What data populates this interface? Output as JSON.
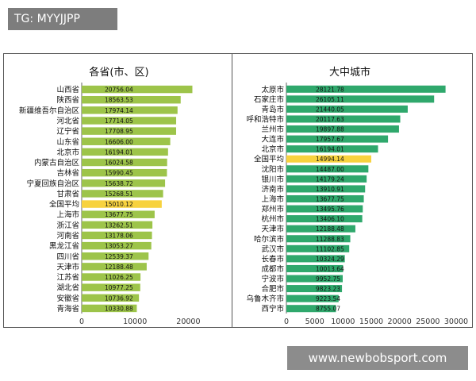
{
  "header_tag": "TG: MYYJJPP",
  "footer_watermark": "www.newbobsport.com",
  "colors": {
    "bar_green_light": "#9dc44a",
    "bar_green_dark": "#2fa86c",
    "bar_highlight": "#f7d23e",
    "axis": "#666666"
  },
  "chart_data": [
    {
      "type": "bar",
      "orientation": "horizontal",
      "title": "各省(市、区)",
      "categories": [
        "山西省",
        "陕西省",
        "新疆维吾尔自治区",
        "河北省",
        "辽宁省",
        "山东省",
        "北京市",
        "内蒙古自治区",
        "吉林省",
        "宁夏回族自治区",
        "甘肃省",
        "全国平均",
        "上海市",
        "浙江省",
        "河南省",
        "黑龙江省",
        "四川省",
        "天津市",
        "江苏省",
        "湖北省",
        "安徽省",
        "青海省"
      ],
      "values": [
        20756.04,
        18563.53,
        17974.14,
        17714.05,
        17708.95,
        16606.0,
        16194.01,
        16024.58,
        15990.45,
        15638.72,
        15268.51,
        15010.12,
        13677.75,
        13262.51,
        13178.06,
        13053.27,
        12539.37,
        12188.48,
        11026.25,
        10977.25,
        10736.92,
        10330.88
      ],
      "value_labels": [
        "20756.04",
        "18563.53",
        "17974.14",
        "17714.05",
        "17708.95",
        "16606.00",
        "16194.01",
        "16024.58",
        "15990.45",
        "15638.72",
        "15268.51",
        "15010.12",
        "13677.75",
        "13262.51",
        "13178.06",
        "13053.27",
        "12539.37",
        "12188.48",
        "11026.25",
        "10977.25",
        "10736.92",
        "10330.88"
      ],
      "highlight_category": "全国平均",
      "xlim": [
        0,
        25000
      ],
      "xticks": [
        0,
        10000,
        20000
      ],
      "xtick_labels": [
        "0",
        "10000",
        "20000"
      ],
      "grid": false,
      "legend": "none"
    },
    {
      "type": "bar",
      "orientation": "horizontal",
      "title": "大中城市",
      "categories": [
        "太原市",
        "石家庄市",
        "青岛市",
        "呼和浩特市",
        "兰州市",
        "大连市",
        "北京市",
        "全国平均",
        "沈阳市",
        "银川市",
        "济南市",
        "上海市",
        "郑州市",
        "杭州市",
        "天津市",
        "哈尔滨市",
        "武汉市",
        "长春市",
        "成都市",
        "宁波市",
        "合肥市",
        "乌鲁木齐市",
        "西宁市"
      ],
      "values": [
        28121.78,
        26105.11,
        21440.05,
        20117.63,
        19897.88,
        17957.67,
        16194.01,
        14994.14,
        14487.0,
        14179.24,
        13910.91,
        13677.75,
        13495.76,
        13406.1,
        12188.48,
        11288.83,
        11102.85,
        10324.29,
        10013.64,
        9952.75,
        9823.23,
        9223.54,
        8755.07
      ],
      "value_labels": [
        "28121.78",
        "26105.11",
        "21440.05",
        "20117.63",
        "19897.88",
        "17957.67",
        "16194.01",
        "14994.14",
        "14487.00",
        "14179.24",
        "13910.91",
        "13677.75",
        "13495.76",
        "13406.10",
        "12188.48",
        "11288.83",
        "11102.85",
        "10324.29",
        "10013.64",
        "9952.75",
        "9823.23",
        "9223.54",
        "8755.07"
      ],
      "highlight_category": "全国平均",
      "xlim": [
        0,
        30000
      ],
      "xticks": [
        0,
        5000,
        10000,
        15000,
        20000,
        25000,
        30000
      ],
      "xtick_labels": [
        "0",
        "5000",
        "10000",
        "15000",
        "20000",
        "25000",
        "30000"
      ],
      "grid": false,
      "legend": "none"
    }
  ]
}
